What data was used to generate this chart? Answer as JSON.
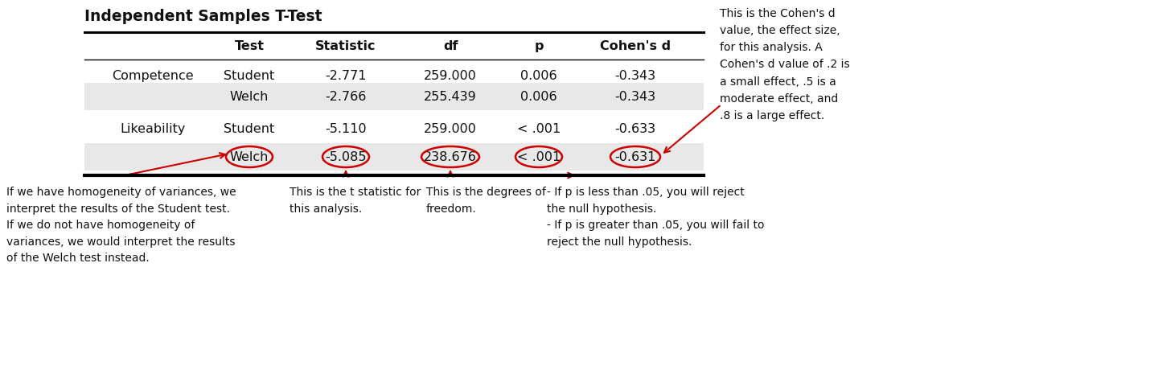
{
  "title": "Independent Samples T-Test",
  "col_headers": [
    "",
    "Test",
    "Statistic",
    "df",
    "p",
    "Cohen's d"
  ],
  "rows": [
    [
      "Competence",
      "Student",
      "-2.771",
      "259.000",
      "0.006",
      "-0.343"
    ],
    [
      "",
      "Welch",
      "-2.766",
      "255.439",
      "0.006",
      "-0.343"
    ],
    [
      "Likeability",
      "Student",
      "-5.110",
      "259.000",
      "< .001",
      "-0.633"
    ],
    [
      "",
      "Welch",
      "-5.085",
      "238.676",
      "< .001",
      "-0.631"
    ]
  ],
  "annotation_bottom_left": "If we have homogeneity of variances, we\ninterpret the results of the Student test.\nIf we do not have homogeneity of\nvariances, we would interpret the results\nof the Welch test instead.",
  "annotation_bottom_center_left": "This is the t statistic for\nthis analysis.",
  "annotation_bottom_center_right": "This is the degrees of\nfreedom.",
  "annotation_bottom_right": "- If p is less than .05, you will reject\nthe null hypothesis.\n- If p is greater than .05, you will fail to\nreject the null hypothesis.",
  "annotation_right": "This is the Cohen's d\nvalue, the effect size,\nfor this analysis. A\nCohen's d value of .2 is\na small effect, .5 is a\nmoderate effect, and\n.8 is a large effect.",
  "bg_color_row_even": "#e8e8e8",
  "bg_color_row_odd": "#ffffff",
  "circle_color": "#cc0000",
  "arrow_color": "#cc0000",
  "text_color": "#111111",
  "font_size_table": 11.5,
  "font_size_annot": 10.0,
  "font_size_title": 13.5
}
